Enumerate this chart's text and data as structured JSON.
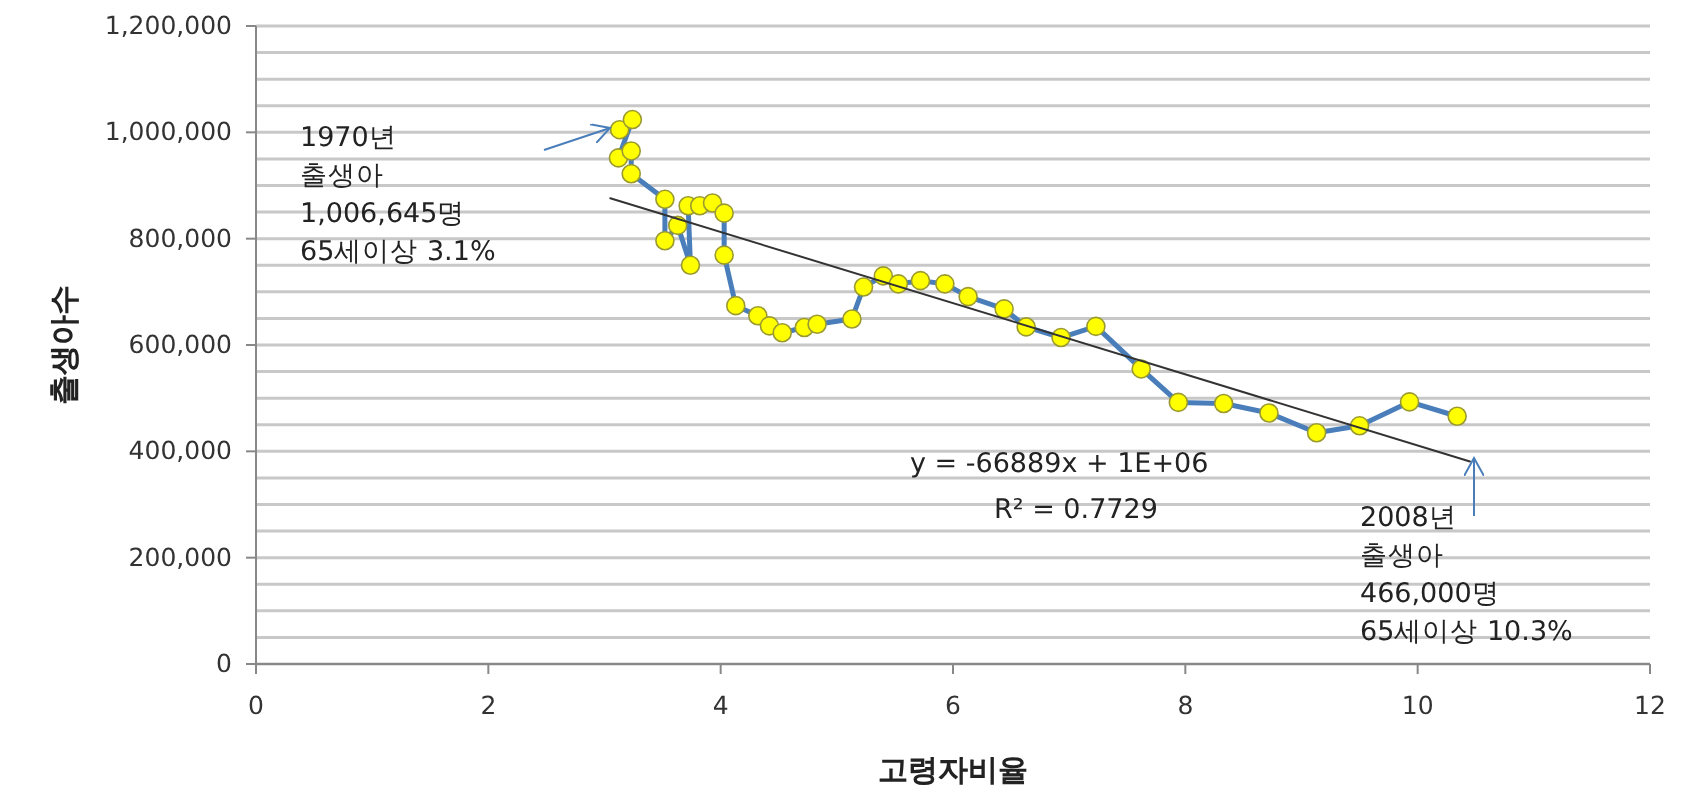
{
  "chart_data": {
    "type": "scatter",
    "xlabel": "고령자비율",
    "ylabel": "출생아수",
    "xlim": [
      0,
      12
    ],
    "xticks": [
      0,
      2,
      4,
      6,
      8,
      10,
      12
    ],
    "ylim": [
      0,
      1200000
    ],
    "yticks": [
      {
        "value": 0,
        "label": "0"
      },
      {
        "value": 50000,
        "label": null
      },
      {
        "value": 100000,
        "label": null
      },
      {
        "value": 150000,
        "label": null
      },
      {
        "value": 200000,
        "label": "200,000"
      },
      {
        "value": 250000,
        "label": null
      },
      {
        "value": 300000,
        "label": null
      },
      {
        "value": 350000,
        "label": null
      },
      {
        "value": 400000,
        "label": "400,000"
      },
      {
        "value": 450000,
        "label": null
      },
      {
        "value": 500000,
        "label": null
      },
      {
        "value": 550000,
        "label": null
      },
      {
        "value": 600000,
        "label": "600,000"
      },
      {
        "value": 650000,
        "label": null
      },
      {
        "value": 700000,
        "label": null
      },
      {
        "value": 750000,
        "label": null
      },
      {
        "value": 800000,
        "label": "800,000"
      },
      {
        "value": 850000,
        "label": null
      },
      {
        "value": 900000,
        "label": null
      },
      {
        "value": 950000,
        "label": null
      },
      {
        "value": 1000000,
        "label": "1,000,000"
      },
      {
        "value": 1050000,
        "label": null
      },
      {
        "value": 1100000,
        "label": null
      },
      {
        "value": 1150000,
        "label": null
      },
      {
        "value": 1200000,
        "label": "1,200,000"
      }
    ],
    "grid": "y",
    "series": [
      {
        "type": "line",
        "color": "#4a7ebb",
        "marker": "circle",
        "x": [
          3.13,
          3.24,
          3.12,
          3.23,
          3.23,
          3.52,
          3.52,
          3.63,
          3.74,
          3.72,
          3.82,
          3.93,
          4.03,
          4.03,
          4.13,
          4.32,
          4.42,
          4.53,
          4.72,
          4.83,
          5.13,
          5.23,
          5.4,
          5.53,
          5.72,
          5.93,
          6.13,
          6.44,
          6.63,
          6.93,
          7.23,
          7.62,
          7.94,
          8.33,
          8.72,
          9.13,
          9.5,
          9.93,
          10.34
        ],
        "values": [
          1005000,
          1024000,
          952000,
          965000,
          922000,
          874000,
          796000,
          825000,
          750000,
          862000,
          862000,
          867000,
          848000,
          769000,
          674000,
          655000,
          636000,
          623000,
          633000,
          639000,
          649000,
          709000,
          730000,
          715000,
          721000,
          715000,
          691000,
          668000,
          634000,
          614000,
          635000,
          555000,
          492000,
          490000,
          472000,
          435000,
          448000,
          493000,
          466000
        ]
      },
      {
        "type": "line",
        "color": "#333333",
        "marker": "none",
        "x": [
          3.05,
          10.45
        ],
        "values": [
          876000,
          381000
        ]
      }
    ],
    "annotations": [
      "1970년\n출생아\n1,006,645명\n65세이상 3.1%",
      "y = -66889x + 1E+06",
      "R² = 0.7729",
      "2008년\n출생아\n466,000명\n65세이상 10.3%"
    ]
  }
}
